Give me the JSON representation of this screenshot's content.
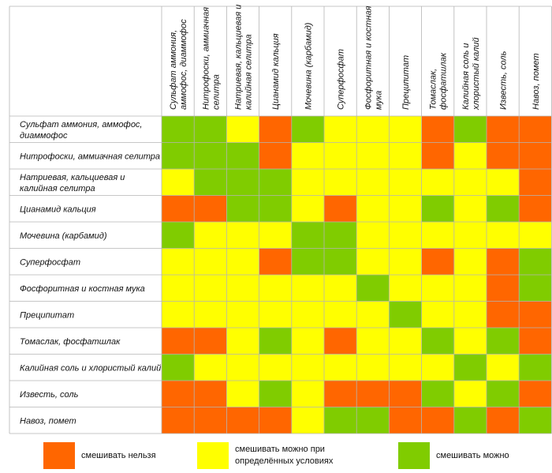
{
  "chart_data": {
    "type": "heatmap",
    "labels": [
      "Сульфат аммония, аммофос, диаммофос",
      "Нитрофоски, аммиачная селитра",
      "Натриевая, кальциевая и калийная селитра",
      "Цианамид кальция",
      "Мочевина (карбамид)",
      "Суперфосфат",
      "Фосфоритная и костная мука",
      "Преципитат",
      "Томаслак, фосфатшлак",
      "Калийная соль и хлористый калий",
      "Известь, соль",
      "Навоз, помет"
    ],
    "col_labels": [
      [
        "Сульфат аммония,",
        "аммофос, диаммофос"
      ],
      [
        "Нитрофоски, аммиачная",
        "селитра"
      ],
      [
        "Натриевая, кальциевая и",
        "калийная селитра"
      ],
      [
        "Цианамид кальция"
      ],
      [
        "Мочевина (карбамид)"
      ],
      [
        "Суперфосфат"
      ],
      [
        "Фосфоритная и костная",
        "мука"
      ],
      [
        "Преципитат"
      ],
      [
        "Томаслак,",
        "фосфатшлак"
      ],
      [
        "Калийная соль и",
        "хлористый калий"
      ],
      [
        "Известь, соль"
      ],
      [
        "Навоз, помет"
      ]
    ],
    "row_labels": [
      [
        "Сульфат аммония, аммофос,",
        "диаммофос"
      ],
      [
        "Нитрофоски, аммиачная селитра"
      ],
      [
        "Натриевая, кальциевая и",
        "калийная селитра"
      ],
      [
        "Цианамид кальция"
      ],
      [
        "Мочевина (карбамид)"
      ],
      [
        "Суперфосфат"
      ],
      [
        "Фосфоритная и костная мука"
      ],
      [
        "Преципитат"
      ],
      [
        "Томаслак, фосфатшлак"
      ],
      [
        "Калийная соль и хлористый калий"
      ],
      [
        "Известь, соль"
      ],
      [
        "Навоз, помет"
      ]
    ],
    "categories_legend": [
      {
        "code": 0,
        "label": "смешивать нельзя",
        "color": "#ff6600"
      },
      {
        "code": 1,
        "label": "смешивать можно при определённых условиях",
        "color": "#ffff00"
      },
      {
        "code": 2,
        "label": "смешивать можно",
        "color": "#80cc00"
      }
    ],
    "matrix": [
      [
        2,
        2,
        1,
        0,
        2,
        1,
        1,
        1,
        0,
        2,
        0,
        0
      ],
      [
        2,
        2,
        2,
        0,
        1,
        1,
        1,
        1,
        0,
        1,
        0,
        0
      ],
      [
        1,
        2,
        2,
        2,
        1,
        1,
        1,
        1,
        1,
        1,
        1,
        0
      ],
      [
        0,
        0,
        2,
        2,
        1,
        0,
        1,
        1,
        2,
        1,
        2,
        0
      ],
      [
        2,
        1,
        1,
        1,
        2,
        2,
        1,
        1,
        1,
        1,
        1,
        1
      ],
      [
        1,
        1,
        1,
        0,
        2,
        2,
        1,
        1,
        0,
        1,
        0,
        2
      ],
      [
        1,
        1,
        1,
        1,
        1,
        1,
        2,
        1,
        1,
        1,
        0,
        2
      ],
      [
        1,
        1,
        1,
        1,
        1,
        1,
        1,
        2,
        1,
        1,
        0,
        0
      ],
      [
        0,
        0,
        1,
        2,
        1,
        0,
        1,
        1,
        2,
        1,
        2,
        0
      ],
      [
        2,
        1,
        1,
        1,
        1,
        1,
        1,
        1,
        1,
        2,
        1,
        2
      ],
      [
        0,
        0,
        1,
        2,
        1,
        0,
        0,
        0,
        2,
        1,
        2,
        0
      ],
      [
        0,
        0,
        0,
        0,
        1,
        2,
        2,
        0,
        0,
        2,
        0,
        2
      ]
    ]
  },
  "legend": [
    {
      "color": "#ff6600",
      "lines": [
        "смешивать нельзя"
      ]
    },
    {
      "color": "#ffff00",
      "lines": [
        "смешивать можно при",
        "определённых условиях"
      ]
    },
    {
      "color": "#80cc00",
      "lines": [
        "смешивать можно"
      ]
    }
  ]
}
